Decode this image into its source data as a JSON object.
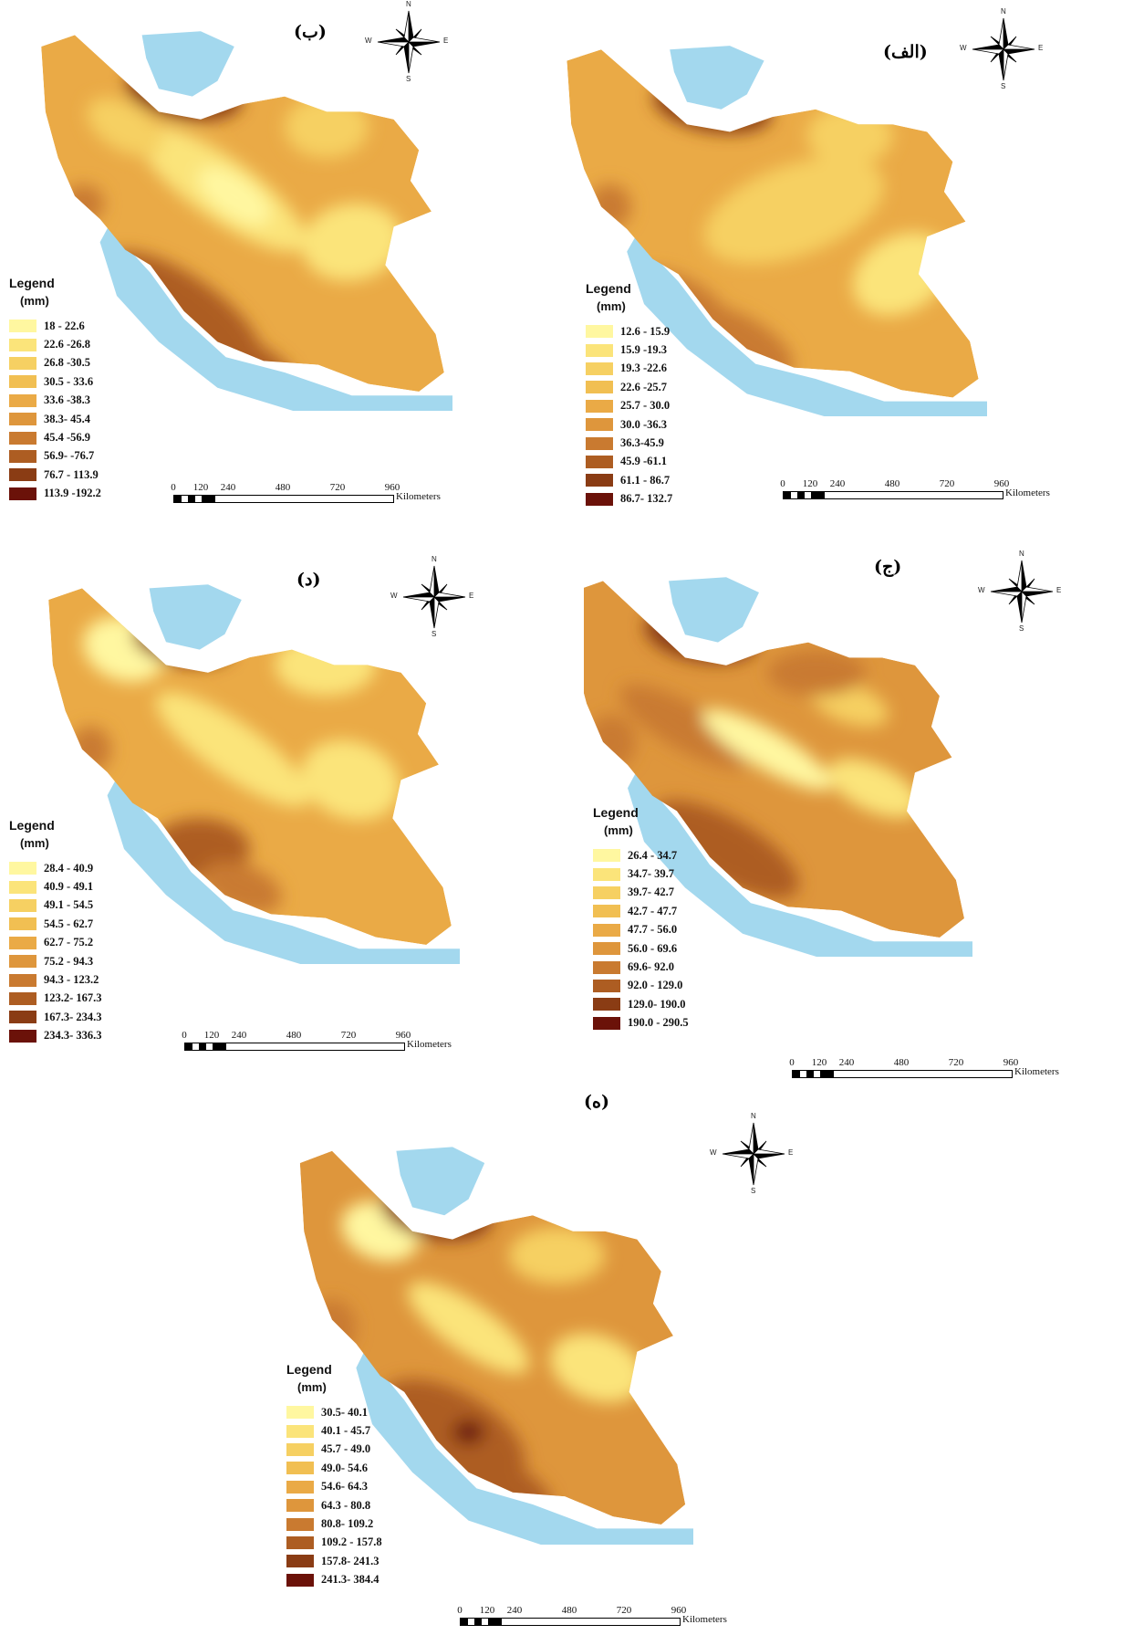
{
  "panels": [
    {
      "id": "b",
      "title": "(ب)",
      "legend_title": "Legend",
      "legend_unit": "(mm)",
      "classes": [
        "18 - 22.6",
        "22.6 -26.8",
        "26.8 -30.5",
        "30.5 - 33.6",
        "33.6 -38.3",
        "38.3- 45.4",
        "45.4 -56.9",
        "56.9- -76.7",
        "76.7 - 113.9",
        "113.9 -192.2"
      ]
    },
    {
      "id": "alef",
      "title": "(الف)",
      "legend_title": "Legend",
      "legend_unit": "(mm)",
      "classes": [
        "12.6 - 15.9",
        "15.9 -19.3",
        "19.3 -22.6",
        "22.6 -25.7",
        "25.7 - 30.0",
        "30.0 -36.3",
        "36.3-45.9",
        "45.9 -61.1",
        "61.1 - 86.7",
        "86.7- 132.7"
      ]
    },
    {
      "id": "dal",
      "title": "(د)",
      "legend_title": "Legend",
      "legend_unit": "(mm)",
      "classes": [
        "28.4 - 40.9",
        "40.9 - 49.1",
        "49.1 - 54.5",
        "54.5 - 62.7",
        "62.7 - 75.2",
        "75.2 - 94.3",
        "94.3 - 123.2",
        "123.2- 167.3",
        "167.3- 234.3",
        "234.3- 336.3"
      ]
    },
    {
      "id": "jim",
      "title": "(ج)",
      "legend_title": "Legend",
      "legend_unit": "(mm)",
      "classes": [
        "26.4 - 34.7",
        "34.7- 39.7",
        "39.7- 42.7",
        "42.7 - 47.7",
        "47.7 - 56.0",
        "56.0 - 69.6",
        "69.6- 92.0",
        "92.0 - 129.0",
        "129.0- 190.0",
        "190.0 - 290.5"
      ]
    },
    {
      "id": "he",
      "title": "(ه)",
      "legend_title": "Legend",
      "legend_unit": "(mm)",
      "classes": [
        "30.5- 40.1",
        "40.1 - 45.7",
        "45.7 - 49.0",
        "49.0- 54.6",
        "54.6- 64.3",
        "64.3 - 80.8",
        "80.8- 109.2",
        "109.2 - 157.8",
        "157.8- 241.3",
        "241.3- 384.4"
      ]
    }
  ],
  "scalebar": {
    "ticks": [
      "0",
      "120",
      "240",
      "480",
      "720",
      "960"
    ],
    "unit": "Kilometers"
  },
  "compass": {
    "n": "N",
    "s": "S",
    "e": "E",
    "w": "W"
  },
  "colors": {
    "classes": [
      "#fff7a0",
      "#fbe47a",
      "#f6d062",
      "#f1bf52",
      "#eaaa46",
      "#de963c",
      "#c97a30",
      "#ad5d22",
      "#8a3c14",
      "#6b1209"
    ],
    "water": "#a3d8ee"
  }
}
